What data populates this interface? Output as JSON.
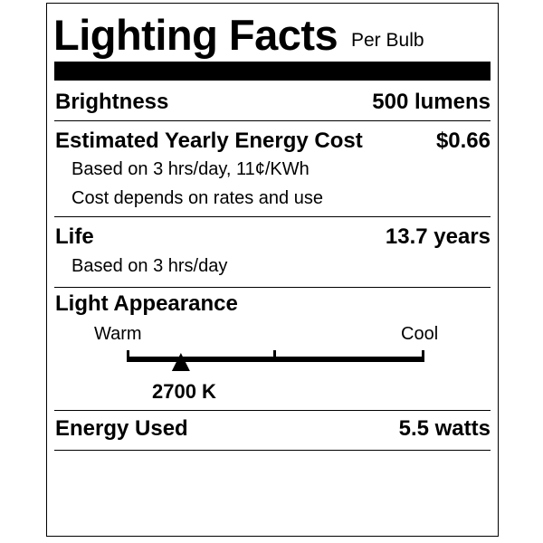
{
  "title": "Lighting Facts",
  "subtitle": "Per Bulb",
  "brightness": {
    "label": "Brightness",
    "value": "500 lumens"
  },
  "energy_cost": {
    "label": "Estimated Yearly Energy Cost",
    "value": "$0.66",
    "note1": "Based on 3 hrs/day, 11¢/KWh",
    "note2": "Cost depends on rates and use"
  },
  "life": {
    "label": "Life",
    "value": "13.7 years",
    "note": "Based on 3 hrs/day"
  },
  "appearance": {
    "label": "Light Appearance",
    "warm": "Warm",
    "cool": "Cool",
    "value": "2700 K",
    "kelvin": 2700,
    "scale_fraction": 0.18
  },
  "energy_used": {
    "label": "Energy Used",
    "value": "5.5 watts"
  }
}
